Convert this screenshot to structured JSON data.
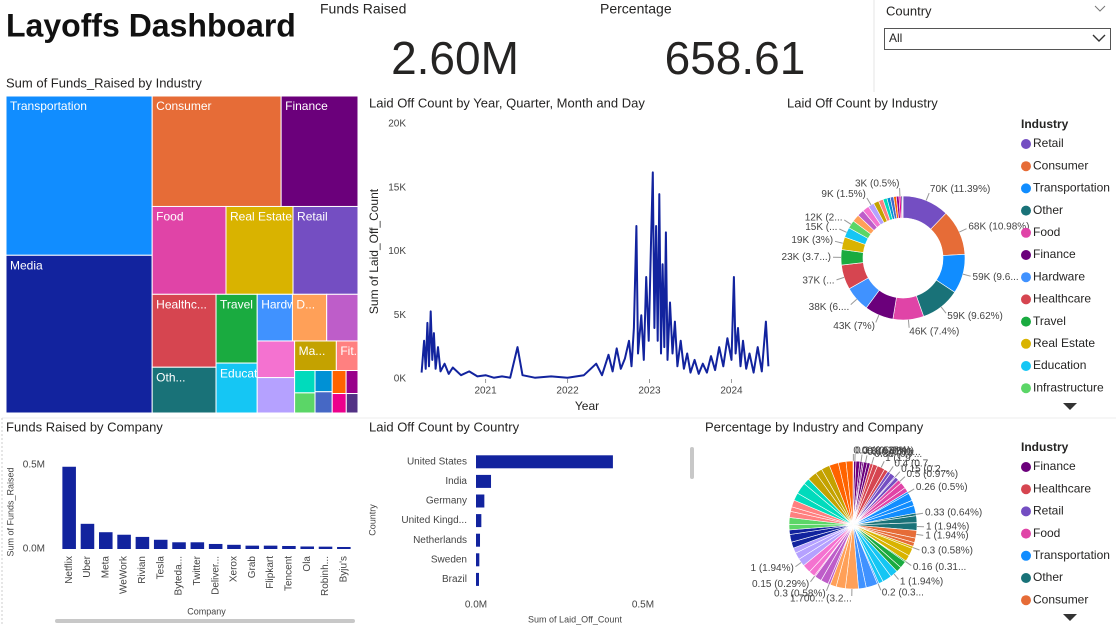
{
  "title": "Layoffs Dashboard",
  "cards": [
    {
      "label": "Funds Raised",
      "value": "2.60M"
    },
    {
      "label": "Percentage",
      "value": "658.61"
    }
  ],
  "slicer": {
    "label": "Country",
    "selected": "All"
  },
  "chart_data": [
    {
      "type": "treemap",
      "title": "Sum of Funds_Raised by Industry",
      "categories": [
        "Transportation",
        "Media",
        "Consumer",
        "Finance",
        "Food",
        "Real Estate",
        "Retail",
        "Healthc...",
        "Oth...",
        "Travel",
        "Educati...",
        "Hardware",
        "D...",
        null,
        null,
        null,
        "Ma...",
        "Fit...",
        null,
        null,
        null,
        null,
        null,
        null,
        null,
        null
      ],
      "values": [
        510000,
        505000,
        312000,
        186000,
        142000,
        129000,
        125000,
        102000,
        64000,
        62000,
        45000,
        36000,
        35000,
        32000,
        30000,
        29000,
        27000,
        14000,
        10000,
        9000,
        8000,
        8000,
        7000,
        6000,
        6000,
        5000
      ],
      "colors": [
        "#118DFF",
        "#12239E",
        "#E66C37",
        "#6B007B",
        "#E044A7",
        "#D9B300",
        "#744EC2",
        "#D64550",
        "#197278",
        "#1AAB40",
        "#15C6F4",
        "#4092FF",
        "#FFA058",
        "#BE5DC9",
        "#F472D0",
        "#B5A1FF",
        "#C4A200",
        "#FF8080",
        "#00DBBC",
        "#5BD667",
        "#0091D5",
        "#4668C5",
        "#FF6300",
        "#99008A",
        "#EC008C",
        "#533285"
      ]
    },
    {
      "type": "line",
      "title": "Laid Off Count by Year, Quarter, Month and Day",
      "x_label": "Year",
      "y_label": "Sum of Laid_Off_Count",
      "color": "#12239E",
      "x": [
        2020.22,
        2020.25,
        2020.27,
        2020.29,
        2020.31,
        2020.33,
        2020.35,
        2020.37,
        2020.39,
        2020.42,
        2020.45,
        2020.5,
        2020.55,
        2020.6,
        2020.7,
        2020.8,
        2020.9,
        2021.0,
        2021.1,
        2021.2,
        2021.3,
        2021.39,
        2021.45,
        2021.6,
        2021.8,
        2022.0,
        2022.2,
        2022.35,
        2022.42,
        2022.5,
        2022.55,
        2022.6,
        2022.65,
        2022.7,
        2022.75,
        2022.78,
        2022.81,
        2022.84,
        2022.86,
        2022.9,
        2022.93,
        2022.96,
        2022.99,
        2023.02,
        2023.04,
        2023.06,
        2023.08,
        2023.1,
        2023.12,
        2023.14,
        2023.16,
        2023.18,
        2023.2,
        2023.22,
        2023.25,
        2023.28,
        2023.31,
        2023.34,
        2023.38,
        2023.42,
        2023.46,
        2023.5,
        2023.55,
        2023.6,
        2023.65,
        2023.7,
        2023.75,
        2023.8,
        2023.85,
        2023.9,
        2023.95,
        2024.0,
        2024.03,
        2024.05,
        2024.08,
        2024.11,
        2024.14,
        2024.18,
        2024.22,
        2024.27,
        2024.32,
        2024.37,
        2024.42,
        2024.45
      ],
      "values": [
        500,
        3000,
        800,
        4400,
        1000,
        5300,
        1500,
        3600,
        800,
        2500,
        600,
        1200,
        400,
        900,
        300,
        600,
        200,
        300,
        100,
        200,
        100,
        2500,
        300,
        100,
        200,
        100,
        300,
        1200,
        300,
        1900,
        600,
        2400,
        800,
        1600,
        3000,
        1000,
        4000,
        12000,
        2000,
        5000,
        1500,
        8000,
        3000,
        11000,
        16200,
        4000,
        12000,
        3000,
        14500,
        2000,
        9000,
        2500,
        11500,
        1500,
        6000,
        2000,
        4500,
        1000,
        3000,
        800,
        2000,
        500,
        1500,
        400,
        1200,
        500,
        1800,
        700,
        2500,
        1000,
        3200,
        1500,
        8000,
        2000,
        4000,
        1000,
        3000,
        800,
        2000,
        500,
        2500,
        600,
        4500,
        1000
      ],
      "xlim": [
        2020.2,
        2024.47
      ],
      "xticks": [
        2021,
        2022,
        2023,
        2024
      ],
      "ylim": [
        0,
        20000
      ],
      "yticks": [
        {
          "value": 0,
          "label": "0K"
        },
        {
          "value": 5000,
          "label": "5K"
        },
        {
          "value": 10000,
          "label": "10K"
        },
        {
          "value": 15000,
          "label": "15K"
        },
        {
          "value": 20000,
          "label": "20K"
        }
      ]
    },
    {
      "type": "donut",
      "title": "Laid Off Count by Industry",
      "legend_title": "Industry",
      "categories": [
        "Retail",
        "Consumer",
        "Transportation",
        "Other",
        "Food",
        "Finance",
        "Hardware",
        "Healthcare",
        "Travel",
        "Real Estate",
        "Education",
        "Infrastructure",
        null,
        null,
        null,
        null,
        null,
        null,
        null,
        null,
        null,
        null,
        null,
        null,
        null,
        null
      ],
      "values": [
        70000,
        68000,
        59000,
        59000,
        46000,
        43000,
        38000,
        37000,
        23000,
        19000,
        15000,
        12000,
        11000,
        10000,
        10000,
        9000,
        8000,
        7000,
        6000,
        5000,
        5000,
        4000,
        4000,
        3000,
        2000,
        1000
      ],
      "value_labels": [
        "70K (11.39%)",
        "68K (10.98%)",
        "59K (9.6...",
        "59K (9.62%)",
        "46K (7.4%)",
        "43K (7%)",
        "38K (6....",
        "37K (...",
        "23K (3.7...)",
        "19K (3%)",
        "15K (...",
        "12K (2...",
        null,
        null,
        null,
        "9K (1.5%)",
        null,
        null,
        null,
        null,
        null,
        null,
        null,
        "3K (0.5%)",
        null,
        null
      ],
      "colors": [
        "#744EC2",
        "#E66C37",
        "#118DFF",
        "#197278",
        "#E044A7",
        "#6B007B",
        "#4092FF",
        "#D64550",
        "#1AAB40",
        "#D9B300",
        "#15C6F4",
        "#5BD667",
        "#FFA058",
        "#BE5DC9",
        "#F472D0",
        "#B5A1FF",
        "#C4A200",
        "#FF8080",
        "#00DBBC",
        "#0091D5",
        "#4668C5",
        "#FF6300",
        "#99008A",
        "#EC008C",
        "#533285",
        "#12239E"
      ]
    },
    {
      "type": "bar",
      "title": "Funds Raised by Company",
      "x_label": "Company",
      "y_label": "Sum of Funds_Raised",
      "color": "#12239E",
      "categories": [
        "Netflix",
        "Uber",
        "Meta",
        "WeWork",
        "Rivian",
        "Tesla",
        "Byteda...",
        "Twitter",
        "Deliver...",
        "Xerox",
        "Grab",
        "Flipkart",
        "Tencent",
        "Ola",
        "Robinh...",
        "Byju's"
      ],
      "values": [
        490000,
        150000,
        100000,
        85000,
        72000,
        55000,
        40000,
        40000,
        30000,
        25000,
        20000,
        20000,
        18000,
        15000,
        14000,
        12000
      ],
      "ylim": [
        0,
        560000
      ],
      "yticks": [
        {
          "value": 0,
          "label": "0.0M"
        },
        {
          "value": 500000,
          "label": "0.5M"
        }
      ]
    },
    {
      "type": "hbar",
      "title": "Laid Off Count by Country",
      "x_label": "Sum of Laid_Off_Count",
      "y_label": "Country",
      "color": "#12239E",
      "categories": [
        "United States",
        "India",
        "Germany",
        "United Kingd...",
        "Netherlands",
        "Sweden",
        "Brazil"
      ],
      "values": [
        410000,
        45000,
        25000,
        16000,
        12000,
        10000,
        9000
      ],
      "xlim": [
        0,
        560000
      ],
      "xticks": [
        {
          "value": 0,
          "label": "0.0M"
        },
        {
          "value": 500000,
          "label": "0.5M"
        }
      ]
    },
    {
      "type": "pie",
      "title": "Percentage by Industry and Company",
      "legend_title": "Industry",
      "series": [
        {
          "name": "Finance",
          "color": "#6B007B",
          "values": [
            0.09,
            0.3,
            0.5,
            0.3,
            0.2,
            0.46,
            0.4
          ],
          "value_labels": [
            "0.09 (0.17%)",
            "0.3 (0.58%)",
            null,
            "0.3 (0.58%)",
            null,
            "0.46 (0.89...",
            null
          ]
        },
        {
          "name": "Healthcare",
          "color": "#D64550",
          "values": [
            0.38,
            0.6,
            1,
            0.5
          ],
          "value_labels": [
            "0.38 (0.7...",
            null,
            "1 (1.9...",
            null
          ]
        },
        {
          "name": "Retail",
          "color": "#744EC2",
          "values": [
            0.4,
            0.7,
            0.15,
            0.5
          ],
          "value_labels": [
            "0.4 (0.7...",
            null,
            "0.15 (0.2...",
            null
          ]
        },
        {
          "name": "Food",
          "color": "#E044A7",
          "values": [
            0.5,
            0.8,
            0.6
          ],
          "value_labels": [
            "0.5 (0.97%)",
            null,
            null
          ]
        },
        {
          "name": "Transportation",
          "color": "#118DFF",
          "values": [
            0.26,
            1,
            0.7,
            1
          ],
          "value_labels": [
            "0.26 (0.5%)",
            null,
            null,
            null
          ]
        },
        {
          "name": "Other",
          "color": "#197278",
          "values": [
            0.33,
            0.9,
            1
          ],
          "value_labels": [
            "0.33 (0.64%)",
            null,
            "1 (1.94%)"
          ]
        },
        {
          "name": "Consumer",
          "color": "#E66C37",
          "values": [
            1,
            0.6,
            0.5
          ],
          "value_labels": [
            "1 (1.94%)",
            null,
            null
          ]
        },
        {
          "name": null,
          "color": "#D9B300",
          "values": [
            0.3,
            1,
            0.8
          ],
          "value_labels": [
            "0.3 (0.58%)",
            null,
            null
          ]
        },
        {
          "name": null,
          "color": "#1AAB40",
          "values": [
            0.16,
            0.9,
            0.7
          ],
          "value_labels": [
            "0.16 (0.31...",
            null,
            null
          ]
        },
        {
          "name": null,
          "color": "#15C6F4",
          "values": [
            1,
            1.2,
            0.6
          ],
          "value_labels": [
            "1 (1.94%)",
            null,
            null
          ]
        },
        {
          "name": null,
          "color": "#4092FF",
          "values": [
            0.2,
            1.5,
            1
          ],
          "value_labels": [
            "0.2 (0.3...",
            null,
            null
          ]
        },
        {
          "name": null,
          "color": "#FFA058",
          "values": [
            1.7,
            1.2,
            0.8
          ],
          "value_labels": [
            "1.700... (3.2...",
            null,
            null
          ]
        },
        {
          "name": null,
          "color": "#BE5DC9",
          "values": [
            0.3,
            1,
            0.9
          ],
          "value_labels": [
            "0.3 (0.58%)",
            null,
            null
          ]
        },
        {
          "name": null,
          "color": "#F472D0",
          "values": [
            0.15,
            0.8,
            1.1
          ],
          "value_labels": [
            "0.15 (0.29%)",
            null,
            null
          ]
        },
        {
          "name": null,
          "color": "#B5A1FF",
          "values": [
            1,
            0.9,
            0.7
          ],
          "value_labels": [
            "1 (1.94%)",
            null,
            null
          ]
        },
        {
          "name": null,
          "color": "#12239E",
          "values": [
            0.8,
            1,
            0.6
          ],
          "value_labels": [
            null,
            null,
            null
          ]
        },
        {
          "name": null,
          "color": "#5BD667",
          "values": [
            0.7,
            0.9
          ],
          "value_labels": [
            null,
            null
          ]
        },
        {
          "name": null,
          "color": "#FF8080",
          "values": [
            0.8,
            0.6,
            0.9
          ],
          "value_labels": [
            null,
            null,
            null
          ]
        },
        {
          "name": null,
          "color": "#00DBBC",
          "values": [
            1,
            1.5,
            0.8
          ],
          "value_labels": [
            null,
            null,
            null
          ]
        },
        {
          "name": null,
          "color": "#C4A200",
          "values": [
            1.2,
            0.9,
            1.1
          ],
          "value_labels": [
            null,
            null,
            null
          ]
        },
        {
          "name": null,
          "color": "#FF6300",
          "values": [
            1.2,
            1,
            0.9
          ],
          "value_labels": [
            null,
            null,
            null
          ]
        }
      ]
    }
  ]
}
